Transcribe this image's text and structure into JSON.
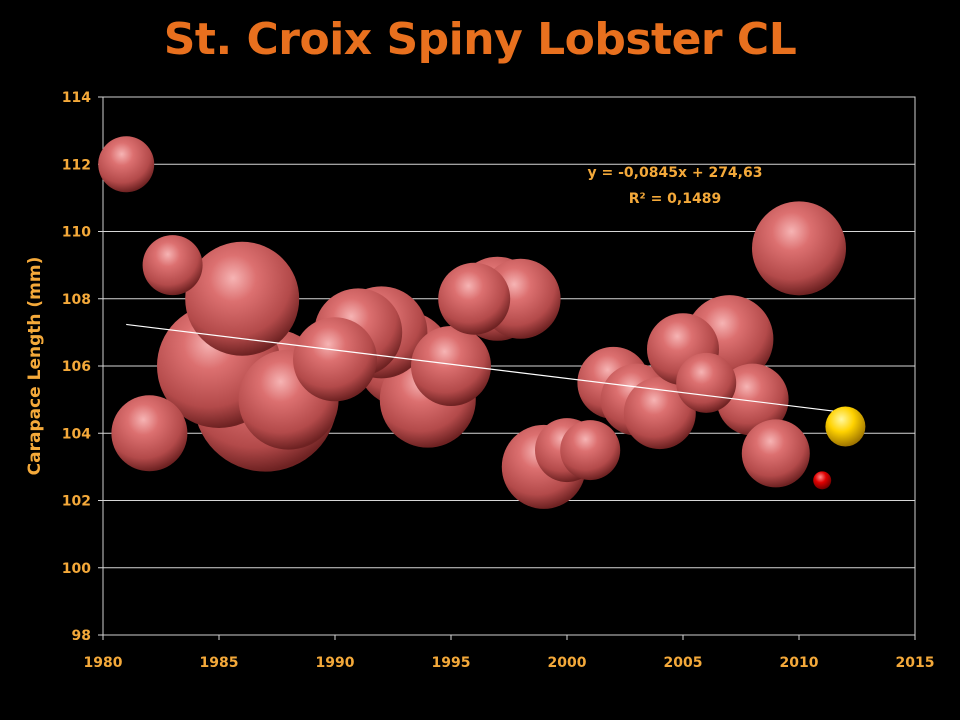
{
  "chart_data": {
    "type": "bubble",
    "title": "St. Croix Spiny Lobster CL",
    "xlabel": "",
    "ylabel": "Carapace Length (mm)",
    "xlim": [
      1980,
      2015
    ],
    "ylim": [
      98,
      114
    ],
    "x_ticks": [
      "1980",
      "1985",
      "1990",
      "1995",
      "2000",
      "2005",
      "2010",
      "2015"
    ],
    "y_ticks": [
      "98",
      "100",
      "102",
      "104",
      "106",
      "108",
      "110",
      "112",
      "114"
    ],
    "grid": true,
    "series": [
      {
        "color": "#d46a6a",
        "points": [
          {
            "x": 1981,
            "y": 112.0,
            "size": 28
          },
          {
            "x": 1982,
            "y": 104.0,
            "size": 38
          },
          {
            "x": 1983,
            "y": 109.0,
            "size": 30
          },
          {
            "x": 1985,
            "y": 106.0,
            "size": 62
          },
          {
            "x": 1986,
            "y": 108.0,
            "size": 57
          },
          {
            "x": 1987,
            "y": 105.0,
            "size": 72
          },
          {
            "x": 1988,
            "y": 105.0,
            "size": 50
          },
          {
            "x": 1990,
            "y": 106.2,
            "size": 42
          },
          {
            "x": 1991,
            "y": 107.0,
            "size": 44
          },
          {
            "x": 1992,
            "y": 107.0,
            "size": 46
          },
          {
            "x": 1993,
            "y": 106.2,
            "size": 48
          },
          {
            "x": 1994,
            "y": 105.0,
            "size": 48
          },
          {
            "x": 1995,
            "y": 106.0,
            "size": 40
          },
          {
            "x": 1996,
            "y": 108.0,
            "size": 36
          },
          {
            "x": 1997,
            "y": 108.0,
            "size": 42
          },
          {
            "x": 1998,
            "y": 108.0,
            "size": 40
          },
          {
            "x": 1999,
            "y": 103.0,
            "size": 42
          },
          {
            "x": 2000,
            "y": 103.5,
            "size": 32
          },
          {
            "x": 2001,
            "y": 103.5,
            "size": 30
          },
          {
            "x": 2002,
            "y": 105.5,
            "size": 36
          },
          {
            "x": 2003,
            "y": 105.0,
            "size": 36
          },
          {
            "x": 2004,
            "y": 104.6,
            "size": 36
          },
          {
            "x": 2005,
            "y": 106.5,
            "size": 36
          },
          {
            "x": 2006,
            "y": 105.5,
            "size": 30
          },
          {
            "x": 2007,
            "y": 106.8,
            "size": 44
          },
          {
            "x": 2008,
            "y": 105.0,
            "size": 36
          },
          {
            "x": 2009,
            "y": 103.4,
            "size": 34
          },
          {
            "x": 2010,
            "y": 109.5,
            "size": 47
          }
        ]
      },
      {
        "color": "#ff1a1a",
        "points": [
          {
            "x": 2011,
            "y": 102.6,
            "size": 9
          }
        ]
      },
      {
        "color": "#ffd700",
        "points": [
          {
            "x": 2012,
            "y": 104.2,
            "size": 20
          }
        ]
      }
    ],
    "trendline": {
      "slope": -0.0845,
      "intercept": 274.63,
      "x_range": [
        1981,
        2012
      ],
      "color": "#ffffff"
    },
    "annotations": {
      "equation": "y = -0,0845x + 274,63",
      "r_squared": "R² = 0,1489"
    }
  }
}
